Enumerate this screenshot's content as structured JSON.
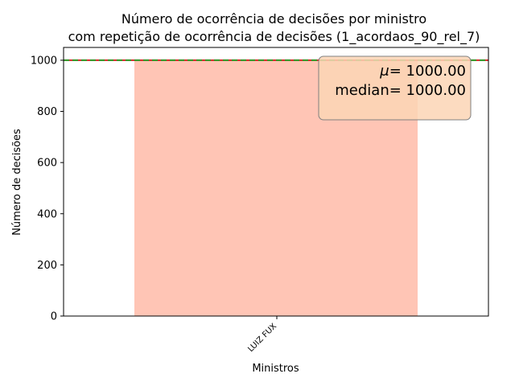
{
  "chart_data": {
    "type": "bar",
    "title_lines": [
      "Número de ocorrência de decisões por ministro",
      "com repetição de ocorrência de decisões (1_acordaos_90_rel_7)"
    ],
    "xlabel": "Ministros",
    "ylabel": "Número de decisões",
    "categories": [
      "LUIZ FUX"
    ],
    "values": [
      1000
    ],
    "ylim": [
      0,
      1050
    ],
    "yticks": [
      0,
      200,
      400,
      600,
      800,
      1000
    ],
    "ytick_labels": [
      "0",
      "200",
      "400",
      "600",
      "800",
      "1000"
    ],
    "grid": false,
    "bar_color": "#ffc5b5",
    "mean": 1000,
    "median": 1000,
    "mean_line_color": "#d62728",
    "median_line_color": "#2ca02c",
    "stats_box": {
      "mean_symbol": "μ",
      "mean_text": "= 1000.00",
      "median_label": "median",
      "median_text": "= 1000.00",
      "placement": "top-right",
      "background": "#fbd5b5"
    }
  }
}
